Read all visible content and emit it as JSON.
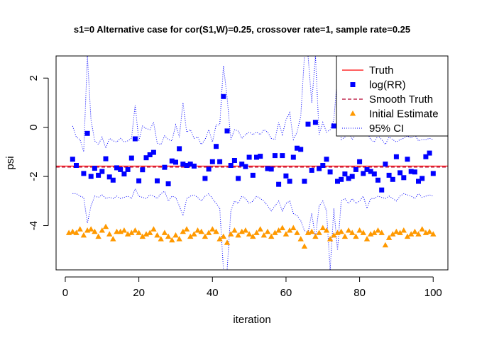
{
  "chart_data": {
    "type": "scatter",
    "title": "s1=0 Alternative case for cor(S1,W)=0.25, crossover rate=1, sample rate=0.25",
    "xlabel": "iteration",
    "ylabel": "psi",
    "xlim": [
      -2.5,
      104
    ],
    "ylim": [
      -5.8,
      2.9
    ],
    "x_ticks": [
      0,
      20,
      40,
      60,
      80,
      100
    ],
    "y_ticks": [
      -4,
      -2,
      0,
      2
    ],
    "legend_position": "top-right",
    "colors": {
      "truth": "#ff0000",
      "smooth_truth": "#b3002d",
      "log_rr": "#0000ff",
      "initial_estimate": "#ff9900",
      "ci": "#0000ff"
    },
    "truth_value": -1.58,
    "smooth_truth_value": -1.62,
    "legend": [
      {
        "label": "Truth",
        "style": "solid-line",
        "color": "#ff0000"
      },
      {
        "label": "log(RR)",
        "style": "square",
        "color": "#0000ff"
      },
      {
        "label": "Smooth Truth",
        "style": "dashed-line",
        "color": "#b3002d"
      },
      {
        "label": "Initial Estimate",
        "style": "triangle",
        "color": "#ff9900"
      },
      {
        "label": "95% CI",
        "style": "dotted-line",
        "color": "#0000ff"
      }
    ],
    "series": [
      {
        "name": "log(RR)",
        "x": [
          2,
          3,
          5,
          6,
          7,
          8,
          9,
          10,
          11,
          12,
          13,
          14,
          15,
          16,
          17,
          18,
          19,
          20,
          21,
          22,
          23,
          24,
          25,
          27,
          28,
          29,
          30,
          31,
          32,
          33,
          34,
          35,
          38,
          39,
          40,
          41,
          42,
          43,
          44,
          45,
          46,
          47,
          48,
          49,
          50,
          51,
          52,
          53,
          55,
          56,
          57,
          58,
          59,
          60,
          61,
          62,
          63,
          64,
          65,
          66,
          67,
          68,
          69,
          70,
          71,
          72,
          73,
          74,
          75,
          76,
          77,
          78,
          79,
          80,
          81,
          82,
          83,
          84,
          85,
          86,
          87,
          88,
          89,
          90,
          91,
          92,
          93,
          94,
          95,
          96,
          97,
          98,
          99,
          100
        ],
        "y": [
          -1.3,
          -1.55,
          -1.88,
          -0.25,
          -2.0,
          -1.67,
          -1.95,
          -1.8,
          -1.28,
          -2.02,
          -2.15,
          -1.65,
          -1.72,
          -1.9,
          -1.72,
          -1.25,
          -0.47,
          -2.18,
          -1.73,
          -1.24,
          -1.12,
          -1.02,
          -2.18,
          -1.63,
          -2.3,
          -1.37,
          -1.42,
          -0.87,
          -1.5,
          -1.55,
          -1.5,
          -1.58,
          -2.08,
          -1.7,
          -1.4,
          -0.78,
          -1.4,
          1.25,
          -0.15,
          -1.55,
          -1.35,
          -2.08,
          -1.5,
          -1.6,
          -1.22,
          -1.95,
          -1.22,
          -1.18,
          -1.68,
          -1.7,
          -1.15,
          -2.32,
          -1.15,
          -1.98,
          -2.2,
          -1.22,
          -0.85,
          -0.9,
          -2.2,
          0.13,
          -1.75,
          0.2,
          -1.68,
          -1.55,
          -1.3,
          -1.82,
          0.05,
          -2.2,
          -2.12,
          -1.9,
          -2.08,
          -2.0,
          -1.72,
          -1.4,
          -1.88,
          -1.72,
          -1.8,
          -1.9,
          -2.15,
          -2.55,
          -1.5,
          -1.95,
          -2.12,
          -1.2,
          -1.85,
          -2.05,
          -1.3,
          -1.8,
          -1.82,
          -2.2,
          -2.08,
          -1.2,
          -1.05,
          -1.88
        ],
        "color": "#0000ff",
        "marker": "square"
      },
      {
        "name": "Initial Estimate",
        "x": [
          1,
          2,
          3,
          4,
          5,
          6,
          7,
          8,
          9,
          10,
          11,
          12,
          13,
          14,
          15,
          16,
          17,
          18,
          19,
          20,
          21,
          22,
          23,
          24,
          25,
          26,
          27,
          28,
          29,
          30,
          31,
          32,
          33,
          34,
          35,
          36,
          37,
          38,
          39,
          40,
          41,
          42,
          43,
          44,
          45,
          46,
          47,
          48,
          49,
          50,
          51,
          52,
          53,
          54,
          55,
          56,
          57,
          58,
          59,
          60,
          61,
          62,
          63,
          64,
          65,
          66,
          67,
          68,
          69,
          70,
          71,
          72,
          73,
          74,
          75,
          76,
          77,
          78,
          79,
          80,
          81,
          82,
          83,
          84,
          85,
          86,
          87,
          88,
          89,
          90,
          91,
          92,
          93,
          94,
          95,
          96,
          97,
          98,
          99,
          100
        ],
        "y": [
          -4.3,
          -4.25,
          -4.3,
          -4.15,
          -4.4,
          -4.2,
          -4.15,
          -4.25,
          -4.45,
          -4.2,
          -4.05,
          -4.35,
          -4.55,
          -4.25,
          -4.25,
          -4.2,
          -4.35,
          -4.3,
          -4.2,
          -4.3,
          -4.45,
          -4.35,
          -4.3,
          -4.15,
          -4.4,
          -4.55,
          -4.3,
          -4.45,
          -4.6,
          -4.4,
          -4.55,
          -4.25,
          -4.15,
          -4.45,
          -4.35,
          -4.2,
          -4.25,
          -4.45,
          -4.3,
          -4.15,
          -4.25,
          -4.55,
          -4.45,
          -4.7,
          -4.35,
          -4.2,
          -4.4,
          -4.25,
          -4.2,
          -4.35,
          -4.45,
          -4.3,
          -4.15,
          -4.4,
          -4.25,
          -4.45,
          -4.3,
          -4.2,
          -4.1,
          -4.35,
          -4.2,
          -4.1,
          -4.3,
          -4.55,
          -4.85,
          -4.3,
          -4.25,
          -4.45,
          -4.3,
          -4.1,
          -4.2,
          -4.55,
          -4.4,
          -4.3,
          -4.25,
          -4.45,
          -4.2,
          -4.3,
          -4.45,
          -4.2,
          -4.3,
          -4.55,
          -4.35,
          -4.3,
          -4.2,
          -4.3,
          -4.8,
          -4.5,
          -4.35,
          -4.25,
          -4.3,
          -4.2,
          -4.45,
          -4.35,
          -4.25,
          -4.35,
          -4.15,
          -4.3,
          -4.25,
          -4.35
        ],
        "color": "#ff9900",
        "marker": "triangle"
      },
      {
        "name": "95% CI (upper)",
        "x": [
          2,
          3,
          4,
          5,
          6,
          7,
          8,
          9,
          10,
          11,
          12,
          13,
          14,
          15,
          16,
          17,
          18,
          19,
          20,
          21,
          22,
          23,
          24,
          25,
          26,
          27,
          28,
          29,
          30,
          31,
          32,
          33,
          34,
          35,
          36,
          37,
          38,
          39,
          40,
          41,
          42,
          43,
          44,
          45,
          46,
          47,
          48,
          49,
          50,
          51,
          52,
          53,
          54,
          55,
          56,
          57,
          58,
          59,
          60,
          61,
          62,
          63,
          64,
          65,
          66,
          67,
          68,
          69,
          70,
          71,
          72,
          73,
          74,
          75,
          76,
          77,
          78,
          79,
          80,
          81,
          82,
          83,
          84,
          85,
          86,
          87,
          88,
          89,
          90,
          91,
          92,
          93,
          94,
          95,
          96,
          97,
          98,
          99,
          100
        ],
        "y": [
          0.05,
          -0.4,
          -0.5,
          -1.0,
          2.9,
          0.3,
          -0.55,
          -0.7,
          -0.4,
          -0.85,
          -0.45,
          -0.55,
          -0.6,
          -0.45,
          -0.6,
          -0.55,
          -0.45,
          0.9,
          -0.55,
          0.05,
          -0.05,
          -0.1,
          0.2,
          -0.65,
          -0.7,
          -0.35,
          -0.5,
          -0.55,
          0.1,
          -0.4,
          1.0,
          -0.2,
          -0.1,
          -0.45,
          -0.4,
          -0.7,
          -0.5,
          -0.1,
          -0.6,
          0.1,
          0.1,
          2.5,
          1.2,
          -0.5,
          -0.1,
          -0.15,
          -0.45,
          -0.3,
          -0.2,
          -0.3,
          -0.2,
          -0.3,
          -0.1,
          -0.2,
          -0.45,
          -0.5,
          0.2,
          -0.3,
          0.3,
          0.6,
          -0.5,
          -0.2,
          0.45,
          2.9,
          2.9,
          1.0,
          2.9,
          -0.3,
          0.2,
          -0.2,
          -0.1,
          0.3,
          2.1,
          -0.5,
          -0.4,
          -0.2,
          -0.5,
          -0.3,
          -0.2,
          0.3,
          -0.2,
          -0.5,
          -0.6,
          -0.35,
          -0.5,
          -0.7,
          -0.4,
          -0.5,
          -0.6,
          -0.5,
          -0.45,
          -0.35,
          -0.45,
          -0.3,
          -0.55,
          -0.5,
          -0.5,
          -0.45,
          -0.5
        ],
        "color": "#0000ff",
        "style": "dotted"
      },
      {
        "name": "95% CI (lower)",
        "x": [
          2,
          3,
          4,
          5,
          6,
          7,
          8,
          9,
          10,
          11,
          12,
          13,
          14,
          15,
          16,
          17,
          18,
          19,
          20,
          21,
          22,
          23,
          24,
          25,
          26,
          27,
          28,
          29,
          30,
          31,
          32,
          33,
          34,
          35,
          36,
          37,
          38,
          39,
          40,
          41,
          42,
          43,
          44,
          45,
          46,
          47,
          48,
          49,
          50,
          51,
          52,
          53,
          54,
          55,
          56,
          57,
          58,
          59,
          60,
          61,
          62,
          63,
          64,
          65,
          66,
          67,
          68,
          69,
          70,
          71,
          72,
          73,
          74,
          75,
          76,
          77,
          78,
          79,
          80,
          81,
          82,
          83,
          84,
          85,
          86,
          87,
          88,
          89,
          90,
          91,
          92,
          93,
          94,
          95,
          96,
          97,
          98,
          99,
          100
        ],
        "y": [
          -2.7,
          -2.7,
          -2.8,
          -2.85,
          -3.9,
          -3.2,
          -2.8,
          -2.85,
          -2.75,
          -2.9,
          -2.85,
          -2.9,
          -2.8,
          -2.9,
          -2.85,
          -2.8,
          -2.9,
          -2.5,
          -2.8,
          -2.85,
          -2.9,
          -2.75,
          -2.8,
          -2.9,
          -2.7,
          -2.6,
          -3.0,
          -2.8,
          -2.85,
          -3.2,
          -3.6,
          -2.9,
          -2.8,
          -2.75,
          -2.85,
          -3.0,
          -2.8,
          -2.7,
          -2.9,
          -3.1,
          -3.3,
          -5.8,
          -5.8,
          -3.4,
          -3.0,
          -3.1,
          -2.8,
          -2.9,
          -3.1,
          -3.0,
          -2.8,
          -2.9,
          -3.0,
          -3.2,
          -3.4,
          -3.2,
          -3.0,
          -3.4,
          -3.1,
          -3.0,
          -3.5,
          -3.6,
          -3.8,
          -4.2,
          -4.3,
          -3.5,
          -4.5,
          -3.2,
          -3.0,
          -3.4,
          -5.8,
          -3.3,
          -5.0,
          -3.0,
          -2.9,
          -3.1,
          -2.9,
          -3.1,
          -3.0,
          -2.8,
          -3.3,
          -2.9,
          -2.9,
          -2.8,
          -2.85,
          -2.9,
          -2.8,
          -2.9,
          -3.0,
          -2.8,
          -2.7,
          -2.75,
          -2.8,
          -2.9,
          -2.7,
          -2.85,
          -2.8,
          -2.75,
          -2.8
        ],
        "color": "#0000ff",
        "style": "dotted"
      }
    ]
  }
}
